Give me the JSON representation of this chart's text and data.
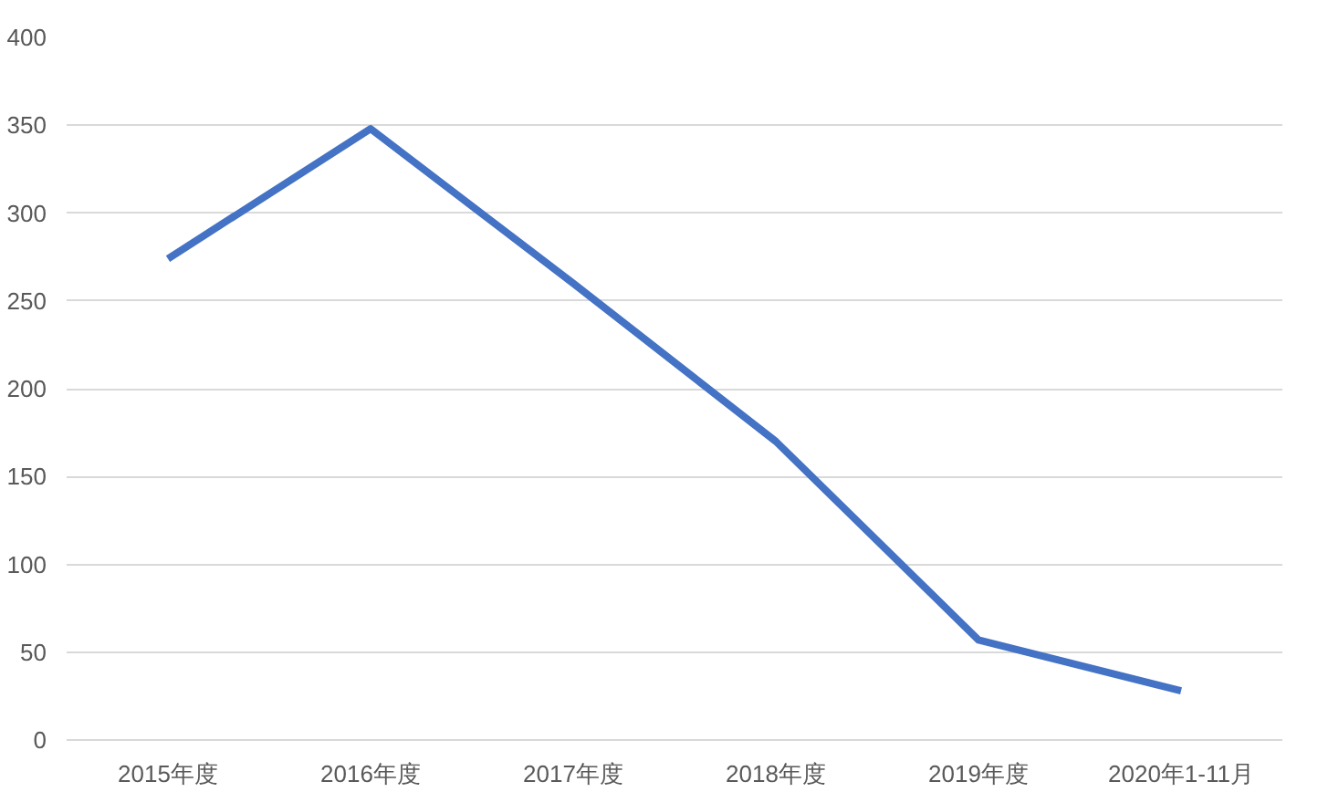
{
  "chart_data": {
    "type": "line",
    "categories": [
      "2015年度",
      "2016年度",
      "2017年度",
      "2018年度",
      "2019年度",
      "2020年1-11月"
    ],
    "series": [
      {
        "color": "#4472c4",
        "values": [
          274,
          348,
          260,
          170,
          57,
          28
        ]
      }
    ],
    "ylim": [
      0,
      400
    ],
    "yticks": [
      0,
      50,
      100,
      150,
      200,
      250,
      300,
      350,
      400
    ],
    "grid": "y",
    "marker": "none",
    "line_style": "solid"
  }
}
